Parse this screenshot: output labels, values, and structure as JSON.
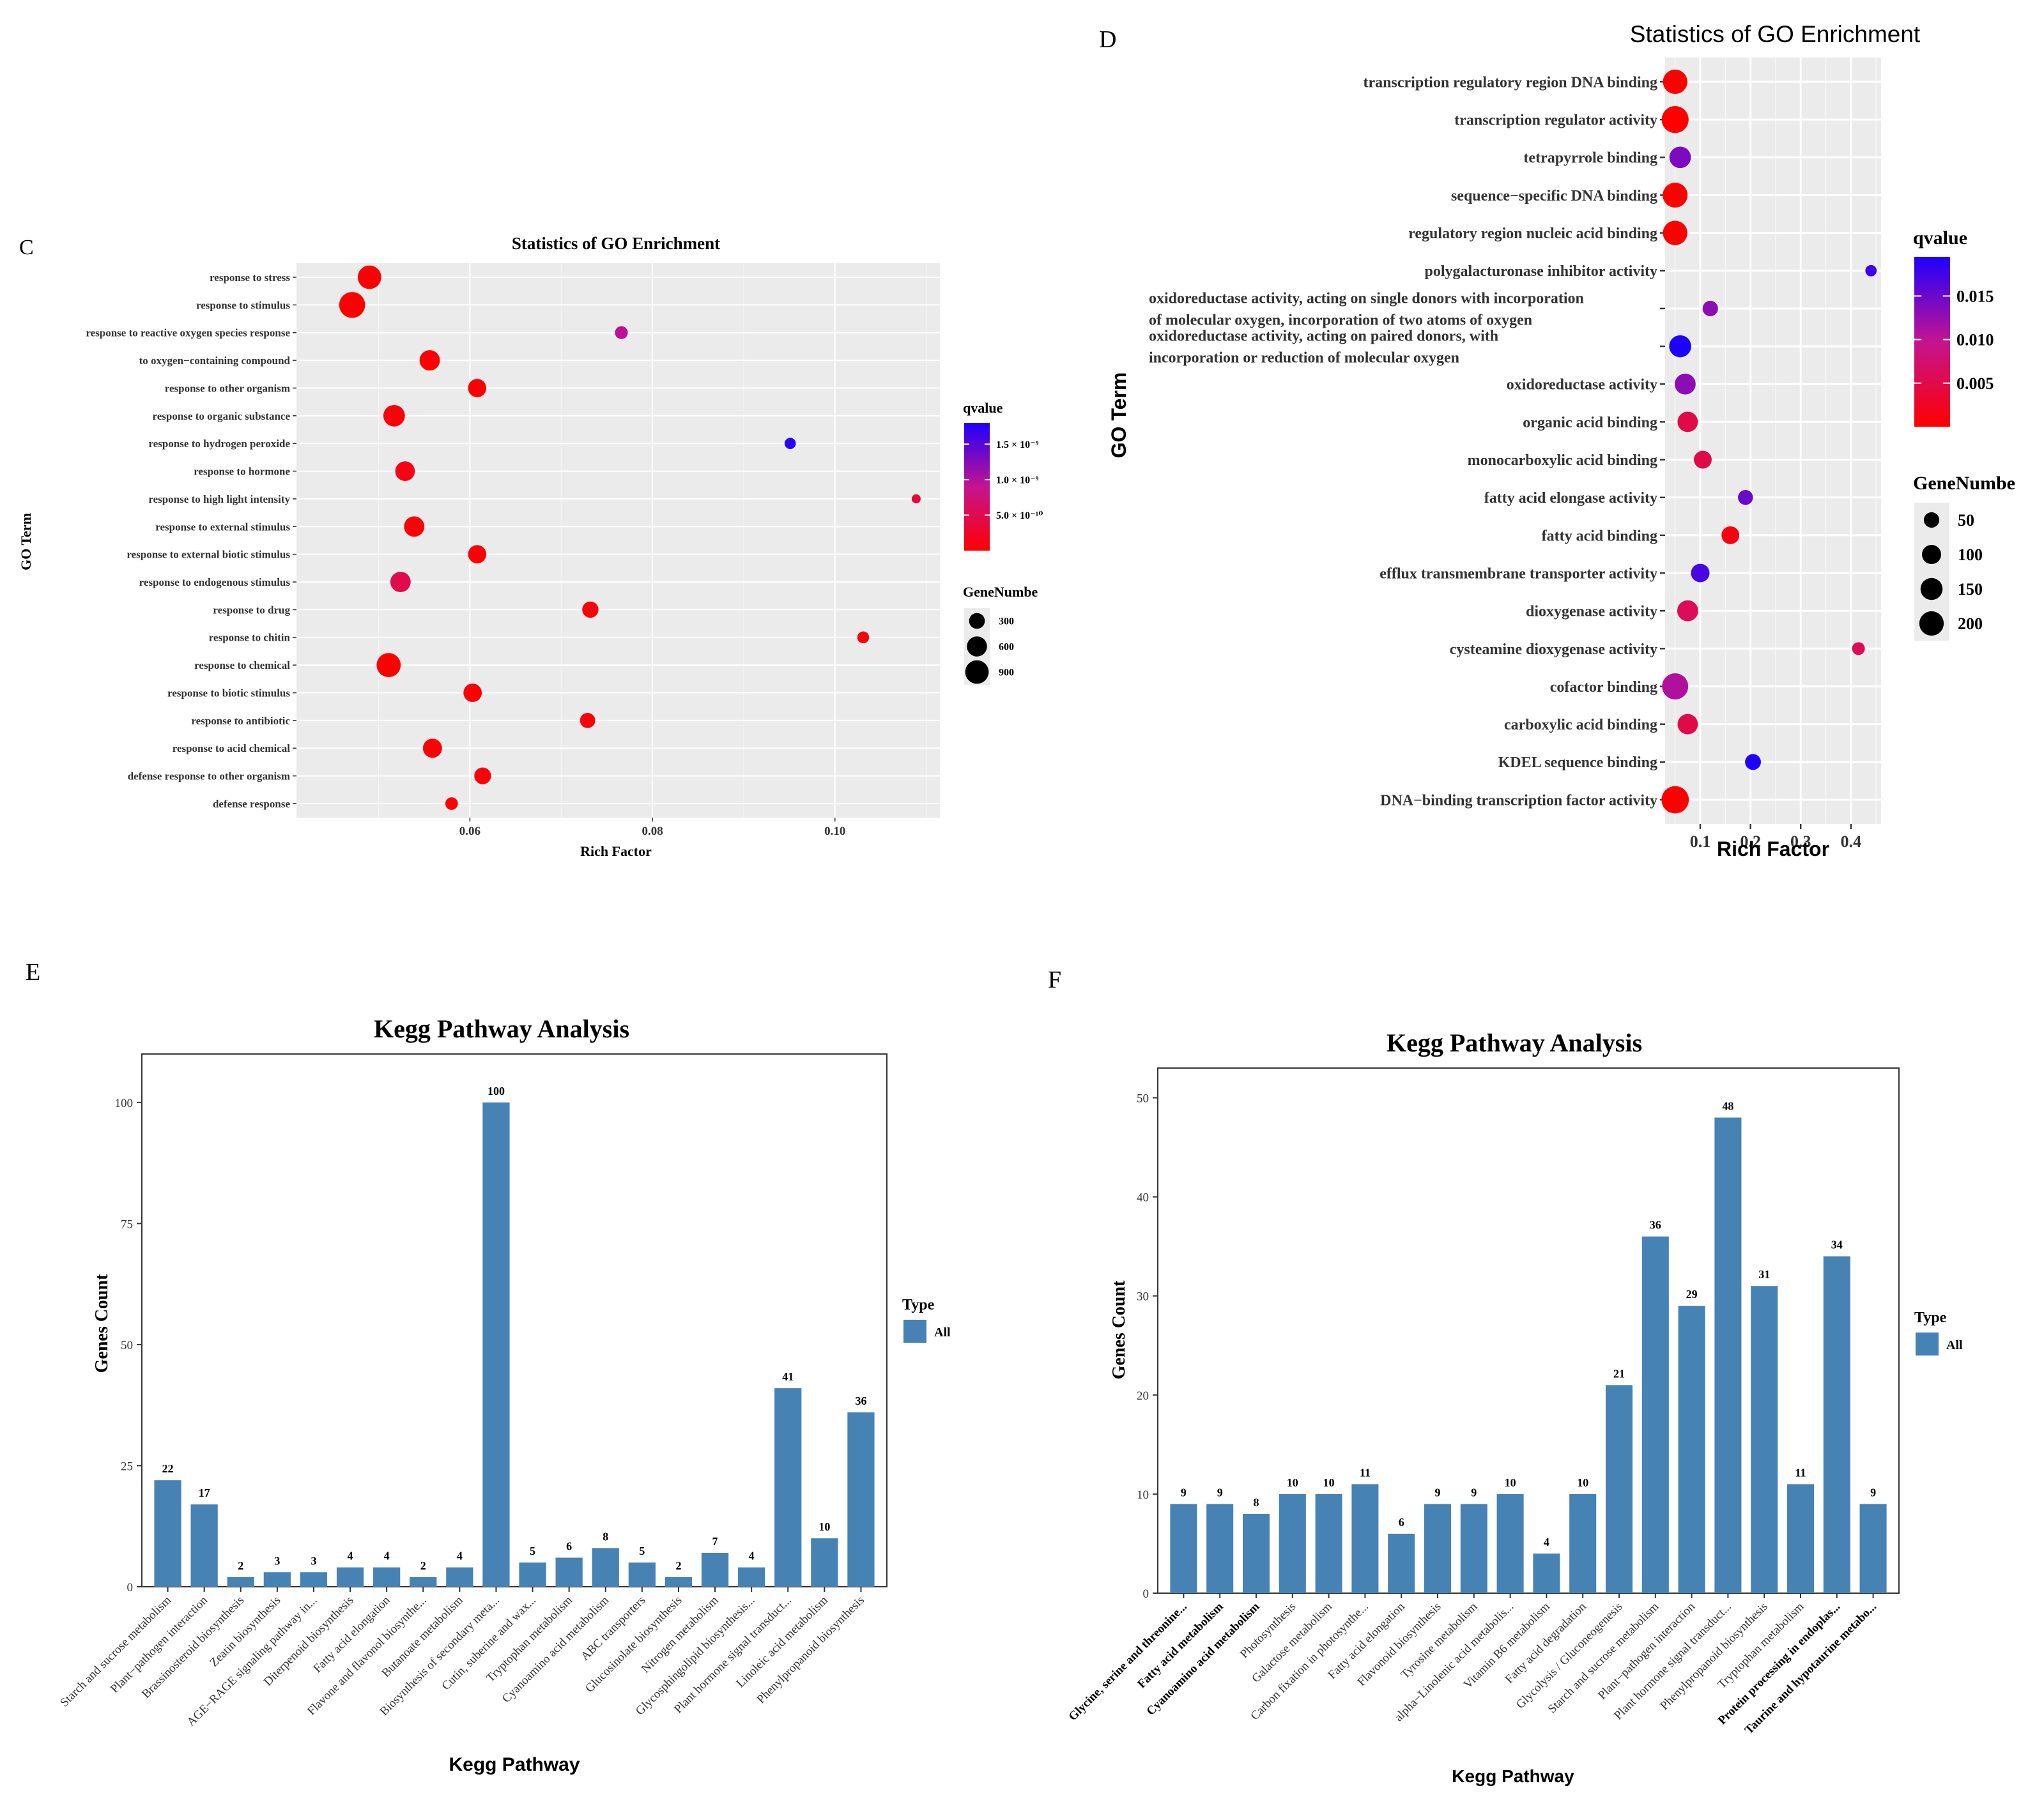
{
  "panels": {
    "C": {
      "letter": "C",
      "chart_data": {
        "type": "scatter",
        "title": "Statistics of GO Enrichment",
        "xlabel": "Rich Factor",
        "ylabel": "GO Term",
        "xlim": [
          0.041,
          0.1115
        ],
        "xticks": [
          0.06,
          0.08,
          0.1
        ],
        "xtick_labels": [
          "0.06",
          "0.08",
          "0.10"
        ],
        "grid": true,
        "points": [
          {
            "term": "response to stress",
            "x": 0.049,
            "q": 0.02,
            "genes": 900
          },
          {
            "term": "response to stimulus",
            "x": 0.0471,
            "q": 0.0,
            "genes": 1150
          },
          {
            "term": "response to reactive oxygen species response",
            "x": 0.0766,
            "q": 0.95,
            "genes": 160
          },
          {
            "term": "to oxygen−containing compound",
            "x": 0.0556,
            "q": 0.04,
            "genes": 620
          },
          {
            "term": "response to other organism",
            "x": 0.0608,
            "q": 0.02,
            "genes": 460
          },
          {
            "term": "response to organic substance",
            "x": 0.0517,
            "q": 0.07,
            "genes": 720
          },
          {
            "term": "response to hydrogen peroxide",
            "x": 0.0951,
            "q": 1.75,
            "genes": 100
          },
          {
            "term": "response to hormone",
            "x": 0.0529,
            "q": 0.12,
            "genes": 560
          },
          {
            "term": "response to high light intensity",
            "x": 0.1089,
            "q": 0.35,
            "genes": 40
          },
          {
            "term": "response to external stimulus",
            "x": 0.0539,
            "q": 0.05,
            "genes": 620
          },
          {
            "term": "response to external biotic stimulus",
            "x": 0.0608,
            "q": 0.02,
            "genes": 460
          },
          {
            "term": "response to endogenous stimulus",
            "x": 0.0524,
            "q": 0.48,
            "genes": 620
          },
          {
            "term": "response to drug",
            "x": 0.0732,
            "q": 0.05,
            "genes": 330
          },
          {
            "term": "response to chitin",
            "x": 0.1031,
            "q": 0.06,
            "genes": 120
          },
          {
            "term": "response to chemical",
            "x": 0.0511,
            "q": 0.0,
            "genes": 960
          },
          {
            "term": "response to biotic stimulus",
            "x": 0.0603,
            "q": 0.02,
            "genes": 470
          },
          {
            "term": "response to antibiotic",
            "x": 0.0729,
            "q": 0.06,
            "genes": 270
          },
          {
            "term": "response to acid chemical",
            "x": 0.0559,
            "q": 0.03,
            "genes": 520
          },
          {
            "term": "defense response to other organism",
            "x": 0.0614,
            "q": 0.02,
            "genes": 360
          },
          {
            "term": "defense response",
            "x": 0.058,
            "q": 0.04,
            "genes": 150
          }
        ],
        "color_legend": {
          "title": "qvalue",
          "labels": [
            "1.5 × 10⁻⁹",
            "1.0 × 10⁻⁹",
            "5.0 × 10⁻¹⁰"
          ],
          "values": [
            1.5,
            1.0,
            0.5
          ],
          "min": 0,
          "max": 1.8,
          "low_color": "#ff0000",
          "mid_color": "#c4148f",
          "high_color": "#1e00ff"
        },
        "size_legend": {
          "title": "GeneNumbe",
          "labels": [
            "300",
            "600",
            "900"
          ],
          "values": [
            300,
            600,
            900
          ]
        }
      }
    },
    "D": {
      "letter": "D",
      "chart_data": {
        "type": "scatter",
        "title": "Statistics of GO Enrichment",
        "xlabel": "Rich Factor",
        "ylabel": "GO Term",
        "xlim": [
          0.03,
          0.46
        ],
        "xticks": [
          0.1,
          0.2,
          0.3,
          0.4
        ],
        "xtick_labels": [
          "0.1",
          "0.2",
          "0.3",
          "0.4"
        ],
        "grid": true,
        "points": [
          {
            "term": [
              "transcription regulatory region DNA binding"
            ],
            "x": 0.05,
            "q": 0.0,
            "genes": 200
          },
          {
            "term": [
              "transcription regulator activity"
            ],
            "x": 0.05,
            "q": 0.0,
            "genes": 260
          },
          {
            "term": [
              "tetrapyrrole binding"
            ],
            "x": 0.06,
            "q": 0.014,
            "genes": 140
          },
          {
            "term": [
              "sequence−specific DNA binding"
            ],
            "x": 0.05,
            "q": 0.0,
            "genes": 210
          },
          {
            "term": [
              "regulatory region nucleic acid binding"
            ],
            "x": 0.05,
            "q": 0.0,
            "genes": 200
          },
          {
            "term": [
              "polygalacturonase inhibitor activity"
            ],
            "x": 0.44,
            "q": 0.018,
            "genes": 15
          },
          {
            "term": [
              "oxidoreductase activity, acting on single donors with incorporation",
              "of molecular oxygen, incorporation of two atoms of oxygen"
            ],
            "x": 0.12,
            "q": 0.013,
            "genes": 50
          },
          {
            "term": [
              "oxidoreductase activity, acting on paired donors, with",
              "incorporation or reduction of molecular oxygen"
            ],
            "x": 0.06,
            "q": 0.02,
            "genes": 150
          },
          {
            "term": [
              "oxidoreductase activity"
            ],
            "x": 0.07,
            "q": 0.013,
            "genes": 130
          },
          {
            "term": [
              "organic acid binding"
            ],
            "x": 0.075,
            "q": 0.005,
            "genes": 120
          },
          {
            "term": [
              "monocarboxylic acid binding"
            ],
            "x": 0.105,
            "q": 0.005,
            "genes": 80
          },
          {
            "term": [
              "fatty acid elongase activity"
            ],
            "x": 0.19,
            "q": 0.015,
            "genes": 45
          },
          {
            "term": [
              "fatty acid binding"
            ],
            "x": 0.16,
            "q": 0.001,
            "genes": 80
          },
          {
            "term": [
              "efflux transmembrane transporter activity"
            ],
            "x": 0.1,
            "q": 0.017,
            "genes": 90
          },
          {
            "term": [
              "dioxygenase activity"
            ],
            "x": 0.075,
            "q": 0.006,
            "genes": 130
          },
          {
            "term": [
              "cysteamine dioxygenase activity"
            ],
            "x": 0.415,
            "q": 0.006,
            "genes": 25
          },
          {
            "term": [
              "cofactor binding"
            ],
            "x": 0.05,
            "q": 0.011,
            "genes": 240
          },
          {
            "term": [
              "carboxylic acid binding"
            ],
            "x": 0.075,
            "q": 0.005,
            "genes": 120
          },
          {
            "term": [
              "KDEL sequence binding"
            ],
            "x": 0.205,
            "q": 0.02,
            "genes": 55
          },
          {
            "term": [
              "DNA−binding transcription factor activity"
            ],
            "x": 0.05,
            "q": 0.0,
            "genes": 270
          }
        ],
        "color_legend": {
          "title": "qvalue",
          "labels": [
            "0.015",
            "0.010",
            "0.005"
          ],
          "values": [
            0.015,
            0.01,
            0.005
          ],
          "min": 0,
          "max": 0.0195,
          "low_color": "#ff0000",
          "mid_color": "#c4148f",
          "high_color": "#1e00ff"
        },
        "size_legend": {
          "title": "GeneNumbe",
          "labels": [
            "50",
            "100",
            "150",
            "200"
          ],
          "values": [
            50,
            100,
            150,
            200
          ]
        }
      }
    },
    "E": {
      "letter": "E",
      "chart_data": {
        "type": "bar",
        "title": "Kegg Pathway Analysis",
        "xlabel": "Kegg Pathway",
        "ylabel": "Genes Count",
        "ylim": [
          0,
          110
        ],
        "yticks": [
          0,
          25,
          50,
          75,
          100
        ],
        "bar_color": "#4682b4",
        "legend": {
          "title": "Type",
          "items": [
            "All"
          ]
        },
        "categories": [
          "Starch and sucrose metabolism",
          "Plant−pathogen interaction",
          "Brassinosteroid biosynthesis",
          "Zeatin biosynthesis",
          "AGE−RAGE signaling pathway in...",
          "Diterpenoid biosynthesis",
          "Fatty acid elongation",
          "Flavone and flavonol biosynthe...",
          "Butanoate metabolism",
          "Biosynthesis of secondary meta...",
          "Cutin, suberine and wax...",
          "Tryptophan metabolism",
          "Cyanoamino acid metabolism",
          "ABC transporters",
          "Glucosinolate biosynthesis",
          "Nitrogen metabolism",
          "Glycosphingolipid biosynthesis...",
          "Plant hormone signal transduct...",
          "Linoleic acid metabolism",
          "Phenylpropanoid biosynthesis"
        ],
        "values": [
          22,
          17,
          2,
          3,
          3,
          4,
          4,
          2,
          4,
          100,
          5,
          6,
          8,
          5,
          2,
          7,
          4,
          41,
          10,
          36
        ],
        "data_labels": [
          "22",
          "17",
          "2",
          "3",
          "3",
          "4",
          "4",
          "2",
          "4",
          "100",
          "5",
          "6",
          "8",
          "5",
          "2",
          "7",
          "4",
          "41",
          "10",
          "36"
        ]
      }
    },
    "F": {
      "letter": "F",
      "chart_data": {
        "type": "bar",
        "title": "Kegg Pathway Analysis",
        "xlabel": "Kegg Pathway",
        "ylabel": "Genes Count",
        "ylim": [
          0,
          53
        ],
        "yticks": [
          0,
          10,
          20,
          30,
          40,
          50
        ],
        "bar_color": "#4682b4",
        "legend": {
          "title": "Type",
          "items": [
            "All"
          ]
        },
        "categories": [
          "Glycine, serine and threonine...",
          "Fatty acid metabolism",
          "Cyanoamino acid metabolism",
          "Photosynthesis",
          "Galactose metabolism",
          "Carbon fixation in photosynthe...",
          "Fatty acid elongation",
          "Flavonoid biosynthesis",
          "Tyrosine metabolism",
          "alpha−Linolenic acid metabolis...",
          "Vitamin B6 metabolism",
          "Fatty acid degradation",
          "Glycolysis / Gluconeogenesis",
          "Starch and sucrose metabolism",
          "Plant−pathogen interaction",
          "Plant hormone signal transduct...",
          "Phenylpropanoid biosynthesis",
          "Tryptophan metabolism",
          "Protein processing in endoplas...",
          "Taurine and hypotaurine metabo..."
        ],
        "bold_categories": [
          true,
          true,
          true,
          false,
          false,
          false,
          false,
          false,
          false,
          false,
          false,
          false,
          false,
          false,
          false,
          false,
          false,
          false,
          true,
          true
        ],
        "values": [
          9,
          9,
          8,
          10,
          10,
          11,
          6,
          9,
          9,
          10,
          4,
          10,
          21,
          36,
          29,
          48,
          31,
          11,
          34,
          9
        ],
        "data_labels": [
          "9",
          "9",
          "8",
          "10",
          "10",
          "11",
          "6",
          "9",
          "9",
          "10",
          "4",
          "10",
          "21",
          "36",
          "29",
          "48",
          "31",
          "11",
          "34",
          "9"
        ]
      }
    }
  }
}
